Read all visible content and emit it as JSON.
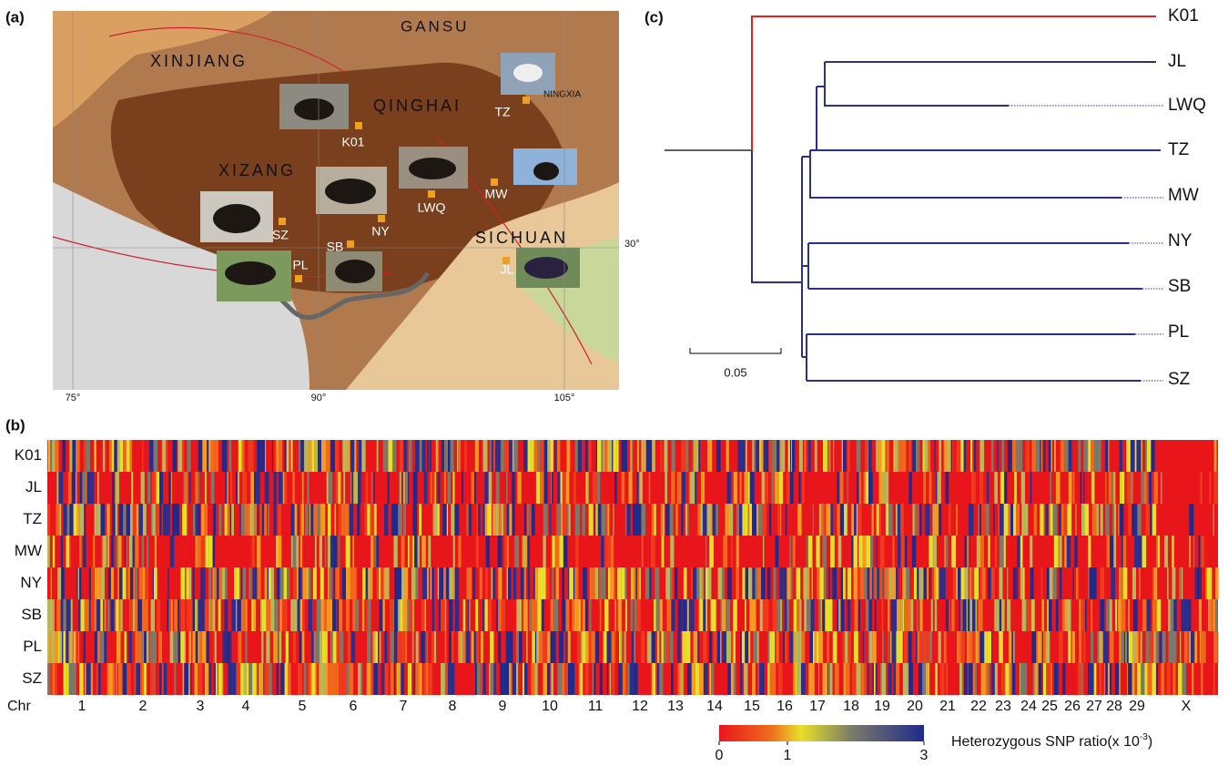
{
  "panels": {
    "a": "(a)",
    "b": "(b)",
    "c": "(c)"
  },
  "map": {
    "regions": [
      "XINJIANG",
      "GANSU",
      "QINGHAI",
      "XIZANG",
      "SICHUAN",
      "NINGXIA"
    ],
    "samples": [
      "TZ",
      "K01",
      "MW",
      "LWQ",
      "SZ",
      "NY",
      "SB",
      "PL",
      "JL"
    ],
    "longitude_ticks": [
      {
        "value": 75,
        "label": "75°"
      },
      {
        "value": 90,
        "label": "90°"
      },
      {
        "value": 105,
        "label": "105°"
      }
    ],
    "latitude_ticks": [
      {
        "value": 30,
        "label": "30°"
      }
    ]
  },
  "tree": {
    "leaves": [
      "K01",
      "JL",
      "LWQ",
      "TZ",
      "MW",
      "NY",
      "SB",
      "PL",
      "SZ"
    ],
    "scale_bar": 0.05
  },
  "heatmap": {
    "rows": [
      "K01",
      "JL",
      "TZ",
      "MW",
      "NY",
      "SB",
      "PL",
      "SZ"
    ],
    "chr_label": "Chr",
    "chromosomes": [
      "1",
      "2",
      "3",
      "4",
      "5",
      "6",
      "7",
      "8",
      "9",
      "10",
      "11",
      "12",
      "13",
      "14",
      "15",
      "16",
      "17",
      "18",
      "19",
      "20",
      "21",
      "22",
      "23",
      "24",
      "25",
      "26",
      "27",
      "28",
      "29",
      "X"
    ],
    "colorbar": {
      "lim": [
        0,
        3
      ],
      "ticks": [
        0,
        1,
        3
      ],
      "label": "Heterozygous SNP ratio(x 10",
      "exponent": "-3",
      "suffix": ")"
    }
  }
}
